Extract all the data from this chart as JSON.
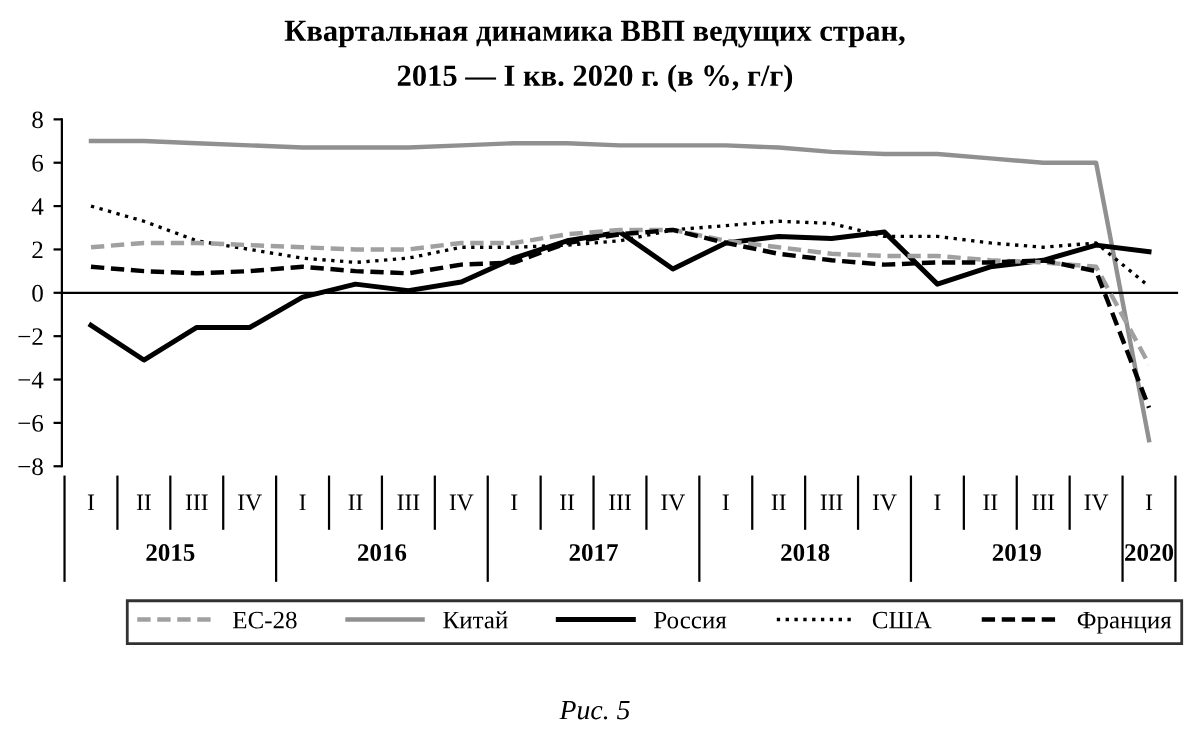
{
  "chart_data": {
    "type": "line",
    "title": "Квартальная динамика ВВП ведущих стран,",
    "subtitle": "2015 — I кв. 2020 г. (в %, г/г)",
    "categories": [
      "I",
      "II",
      "III",
      "IV",
      "I",
      "II",
      "III",
      "IV",
      "I",
      "II",
      "III",
      "IV",
      "I",
      "II",
      "III",
      "IV",
      "I",
      "II",
      "III",
      "IV",
      "I"
    ],
    "annotations": [
      "2015",
      "2016",
      "2017",
      "2018",
      "2019",
      "2020",
      "Рис. 5"
    ],
    "ylim": [
      -8,
      8
    ],
    "yticks": [
      -8,
      -6,
      -4,
      -2,
      0,
      2,
      4,
      6,
      8
    ],
    "grid": false,
    "ref_lines": [
      {
        "axis": "y",
        "value": 0,
        "color": "#000000"
      }
    ],
    "legend": "bottom",
    "marker": "none",
    "series": [
      {
        "name": "ЕС-28",
        "color": "#a0a0a0",
        "line_style": "dashed",
        "values": [
          2.1,
          2.3,
          2.3,
          2.2,
          2.1,
          2.0,
          2.0,
          2.3,
          2.3,
          2.7,
          2.9,
          2.9,
          2.4,
          2.1,
          1.8,
          1.7,
          1.7,
          1.5,
          1.4,
          1.2,
          -3.3
        ]
      },
      {
        "name": "Китай",
        "color": "#909090",
        "line_style": "solid",
        "values": [
          7.0,
          7.0,
          6.9,
          6.8,
          6.7,
          6.7,
          6.7,
          6.8,
          6.9,
          6.9,
          6.8,
          6.8,
          6.8,
          6.7,
          6.5,
          6.4,
          6.4,
          6.2,
          6.0,
          6.0,
          -6.8
        ]
      },
      {
        "name": "Россия",
        "color": "#000000",
        "line_style": "solid",
        "values": [
          -1.5,
          -3.1,
          -1.6,
          -1.6,
          -0.2,
          0.4,
          0.1,
          0.5,
          1.6,
          2.4,
          2.8,
          1.1,
          2.3,
          2.6,
          2.5,
          2.8,
          0.4,
          1.2,
          1.5,
          2.2,
          1.9
        ]
      },
      {
        "name": "США",
        "color": "#000000",
        "line_style": "dotted",
        "values": [
          4.0,
          3.3,
          2.4,
          2.0,
          1.6,
          1.4,
          1.6,
          2.1,
          2.1,
          2.2,
          2.4,
          2.9,
          3.1,
          3.3,
          3.2,
          2.6,
          2.6,
          2.3,
          2.1,
          2.3,
          0.3
        ]
      },
      {
        "name": "Франция",
        "color": "#000000",
        "line_style": "dashed",
        "values": [
          1.2,
          1.0,
          0.9,
          1.0,
          1.2,
          1.0,
          0.9,
          1.3,
          1.4,
          2.3,
          2.7,
          2.9,
          2.3,
          1.8,
          1.5,
          1.3,
          1.4,
          1.4,
          1.5,
          1.0,
          -5.3
        ]
      }
    ]
  }
}
